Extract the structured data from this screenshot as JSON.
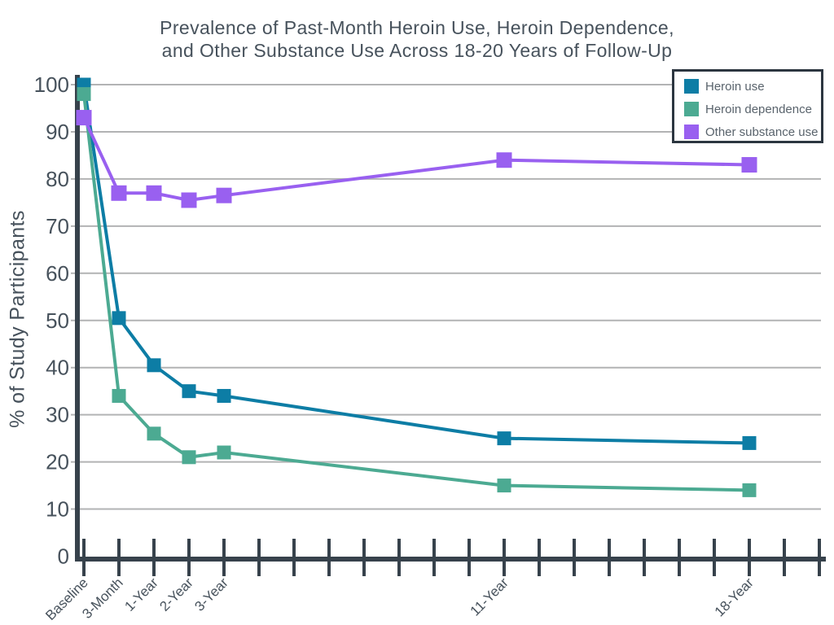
{
  "title": {
    "line1": "Prevalence of Past-Month Heroin Use, Heroin Dependence,",
    "line2": "and Other Substance Use Across 18-20 Years of Follow-Up"
  },
  "colors": {
    "text": "#47525c",
    "axis": "#37424c",
    "grid": "#b2b3b4",
    "legend_border": "#2c3640",
    "legend_text": "#59636c",
    "background": "#ffffff"
  },
  "chart_data": {
    "type": "line",
    "title": "Prevalence of Past-Month Heroin Use, Heroin Dependence, and Other Substance Use Across 18-20 Years of Follow-Up",
    "xlabel": "",
    "ylabel": "% of Study Participants",
    "ylim": [
      0,
      100
    ],
    "y_ticks": [
      0,
      10,
      20,
      30,
      40,
      50,
      60,
      70,
      80,
      90,
      100
    ],
    "grid": "horizontal",
    "legend_position": "top-right",
    "x_tick_total": 22,
    "x_labeled_ticks": [
      {
        "index": 0,
        "label": "Baseline"
      },
      {
        "index": 1,
        "label": "3-Month"
      },
      {
        "index": 2,
        "label": "1-Year"
      },
      {
        "index": 3,
        "label": "2-Year"
      },
      {
        "index": 4,
        "label": "3-Year"
      },
      {
        "index": 12,
        "label": "11-Year"
      },
      {
        "index": 19,
        "label": "18-Year"
      }
    ],
    "point_tick_indices": [
      0,
      1,
      2,
      3,
      4,
      12,
      19
    ],
    "series": [
      {
        "name": "Heroin use",
        "color": "#0d7da5",
        "marker_size": 17,
        "values": [
          100,
          50.5,
          40.5,
          35,
          34,
          25,
          24
        ]
      },
      {
        "name": "Heroin dependence",
        "color": "#4caa92",
        "marker_size": 17,
        "values": [
          98,
          34,
          26,
          21,
          22,
          15,
          14
        ]
      },
      {
        "name": "Other substance use",
        "color": "#9960f0",
        "marker_size": 19,
        "values": [
          93,
          77,
          77,
          75.5,
          76.5,
          84,
          83
        ]
      }
    ]
  }
}
